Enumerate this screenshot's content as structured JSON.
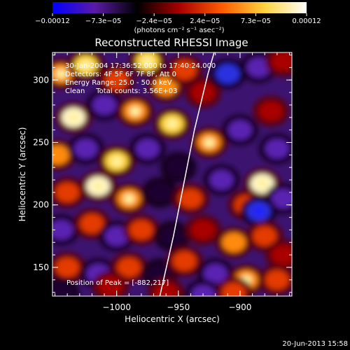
{
  "chart_data": {
    "type": "heatmap",
    "title": "Reconstructed RHESSI Image",
    "xlabel": "Heliocentric X (arcsec)",
    "ylabel": "Heliocentric Y (arcsec)",
    "xlim": [
      -1052,
      -858
    ],
    "ylim": [
      127,
      322
    ],
    "x_ticks": [
      {
        "value": -1000,
        "label": "−1000"
      },
      {
        "value": -950,
        "label": "−950"
      },
      {
        "value": -900,
        "label": "−900"
      }
    ],
    "y_ticks": [
      {
        "value": 150,
        "label": "150"
      },
      {
        "value": 200,
        "label": "200"
      },
      {
        "value": 250,
        "label": "250"
      },
      {
        "value": 300,
        "label": "300"
      }
    ],
    "colorbar": {
      "min": -0.00012,
      "max": 0.00012,
      "tick_labels": [
        "−0.00012",
        "−7.3e−05",
        "−2.4e−05",
        "2.4e−05",
        "7.3e−05",
        "0.00012"
      ],
      "unit_label": "(photons cm⁻² s⁻¹ asec⁻²)",
      "colors": [
        "#0000ff",
        "#5a1aa8",
        "#000000",
        "#a80000",
        "#ff5a00",
        "#ffd23c",
        "#ffffff"
      ]
    },
    "annotations": [
      "30-Jan-2004 17:36:52.000 to 17:40:24.000",
      "Detectors: 4F 5F 6F 7F 8F, Att 0",
      "Energy Range: 25.0 - 50.0 keV",
      "Clean     Total counts: 3.56E+03"
    ],
    "peak_label": "Position of Peak = [-882,217]",
    "peak": {
      "x": -882,
      "y": 217
    },
    "limb_curve": [
      [
        -965,
        127
      ],
      [
        -954,
        175
      ],
      [
        -946,
        215
      ],
      [
        -937,
        260
      ],
      [
        -926,
        305
      ],
      [
        -921,
        322
      ]
    ],
    "blobs": [
      {
        "x": -1045,
        "y": 305,
        "v": 0.8
      },
      {
        "x": -1025,
        "y": 312,
        "v": 0.9
      },
      {
        "x": -1000,
        "y": 300,
        "v": 0.7
      },
      {
        "x": -975,
        "y": 315,
        "v": 0.85
      },
      {
        "x": -960,
        "y": 295,
        "v": 0.75
      },
      {
        "x": -945,
        "y": 308,
        "v": 0.6
      },
      {
        "x": -1035,
        "y": 270,
        "v": 0.95
      },
      {
        "x": -1010,
        "y": 280,
        "v": -0.6
      },
      {
        "x": -985,
        "y": 275,
        "v": 0.8
      },
      {
        "x": -955,
        "y": 265,
        "v": 0.9
      },
      {
        "x": -930,
        "y": 290,
        "v": 0.5
      },
      {
        "x": -910,
        "y": 305,
        "v": -0.7
      },
      {
        "x": -885,
        "y": 310,
        "v": -0.5
      },
      {
        "x": -865,
        "y": 315,
        "v": 0.4
      },
      {
        "x": -1048,
        "y": 240,
        "v": 0.75
      },
      {
        "x": -1025,
        "y": 245,
        "v": -0.5
      },
      {
        "x": -1000,
        "y": 235,
        "v": 0.85
      },
      {
        "x": -975,
        "y": 245,
        "v": -0.55
      },
      {
        "x": -950,
        "y": 230,
        "v": -0.4
      },
      {
        "x": -925,
        "y": 250,
        "v": 0.8
      },
      {
        "x": -900,
        "y": 260,
        "v": -0.5
      },
      {
        "x": -875,
        "y": 275,
        "v": 0.5
      },
      {
        "x": -870,
        "y": 245,
        "v": -0.6
      },
      {
        "x": -1040,
        "y": 210,
        "v": 0.7
      },
      {
        "x": -1015,
        "y": 215,
        "v": 0.95
      },
      {
        "x": -990,
        "y": 205,
        "v": 0.8
      },
      {
        "x": -965,
        "y": 210,
        "v": -0.45
      },
      {
        "x": -940,
        "y": 205,
        "v": 0.55
      },
      {
        "x": -915,
        "y": 220,
        "v": -0.6
      },
      {
        "x": -895,
        "y": 200,
        "v": 0.7
      },
      {
        "x": -882,
        "y": 217,
        "v": 1.0
      },
      {
        "x": -865,
        "y": 205,
        "v": -0.5
      },
      {
        "x": -885,
        "y": 195,
        "v": -0.9
      },
      {
        "x": -1045,
        "y": 180,
        "v": -0.6
      },
      {
        "x": -1020,
        "y": 185,
        "v": 0.6
      },
      {
        "x": -1000,
        "y": 175,
        "v": -0.55
      },
      {
        "x": -980,
        "y": 180,
        "v": 0.55
      },
      {
        "x": -955,
        "y": 175,
        "v": -0.45
      },
      {
        "x": -930,
        "y": 180,
        "v": 0.5
      },
      {
        "x": -905,
        "y": 170,
        "v": 0.75
      },
      {
        "x": -880,
        "y": 175,
        "v": 0.6
      },
      {
        "x": -865,
        "y": 160,
        "v": 0.5
      },
      {
        "x": -1040,
        "y": 150,
        "v": 0.6
      },
      {
        "x": -1015,
        "y": 145,
        "v": -0.5
      },
      {
        "x": -990,
        "y": 150,
        "v": 0.65
      },
      {
        "x": -965,
        "y": 145,
        "v": -0.4
      },
      {
        "x": -945,
        "y": 155,
        "v": 0.55
      },
      {
        "x": -920,
        "y": 145,
        "v": -0.55
      },
      {
        "x": -895,
        "y": 140,
        "v": 0.8
      },
      {
        "x": -870,
        "y": 140,
        "v": 0.7
      },
      {
        "x": -1045,
        "y": 130,
        "v": -0.45
      },
      {
        "x": -1005,
        "y": 135,
        "v": 0.5
      },
      {
        "x": -960,
        "y": 130,
        "v": 0.45
      },
      {
        "x": -930,
        "y": 128,
        "v": -0.5
      },
      {
        "x": -905,
        "y": 130,
        "v": 0.6
      }
    ]
  },
  "footer": {
    "date": "20-Jun-2013 15:58"
  }
}
